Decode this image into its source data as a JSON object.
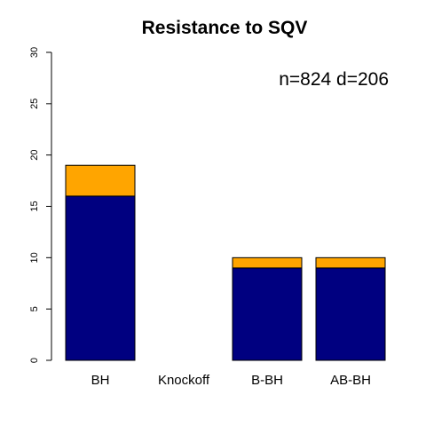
{
  "chart_data": {
    "type": "bar",
    "stacked": true,
    "title": "Resistance to SQV",
    "annotation": "n=824 d=206",
    "categories": [
      "BH",
      "Knockoff",
      "B-BH",
      "AB-BH"
    ],
    "series": [
      {
        "values": [
          16,
          0,
          9,
          9
        ],
        "color": "#000080"
      },
      {
        "values": [
          3,
          0,
          1,
          1
        ],
        "color": "#FFA500"
      }
    ],
    "ylim": [
      0,
      30
    ],
    "yticks": [
      0,
      5,
      10,
      15,
      20,
      25,
      30
    ],
    "grid": false,
    "legend": "none"
  }
}
